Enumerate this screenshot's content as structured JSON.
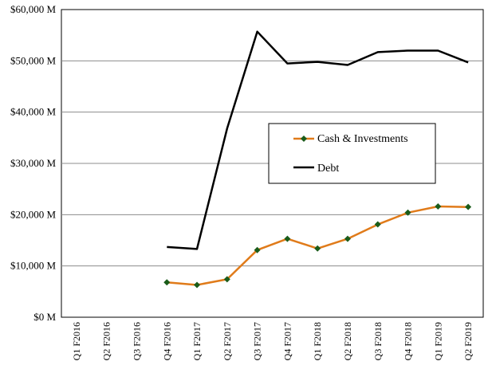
{
  "chart_data": {
    "type": "line",
    "title": "",
    "xlabel": "",
    "ylabel": "",
    "ylim": [
      0,
      60000
    ],
    "y_ticks": [
      0,
      10000,
      20000,
      30000,
      40000,
      50000,
      60000
    ],
    "y_tick_labels": [
      "$0 M",
      "$10,000 M",
      "$20,000 M",
      "$30,000 M",
      "$40,000 M",
      "$50,000 M",
      "$60,000 M"
    ],
    "grid": "horizontal",
    "legend_position": "right-center",
    "categories": [
      "Q1 F2016",
      "Q2 F2016",
      "Q3 F2016",
      "Q4 F2016",
      "Q1 F2017",
      "Q2 F2017",
      "Q3 F2017",
      "Q4 F2017",
      "Q1 F2018",
      "Q2 F2018",
      "Q3 F2018",
      "Q4 F2018",
      "Q1 F2019",
      "Q2 F2019"
    ],
    "series": [
      {
        "name": "Cash & Investments",
        "color": "#e07b1a",
        "marker_color": "#1a5c1a",
        "marker": "diamond",
        "values": [
          null,
          null,
          null,
          6800,
          6300,
          7400,
          13100,
          15300,
          13400,
          15300,
          18100,
          20400,
          21600,
          21500
        ]
      },
      {
        "name": "Debt",
        "color": "#000000",
        "marker": "none",
        "values": [
          null,
          null,
          null,
          13700,
          13300,
          36800,
          55700,
          49500,
          49800,
          49200,
          51700,
          52000,
          52000,
          49700
        ]
      }
    ]
  }
}
